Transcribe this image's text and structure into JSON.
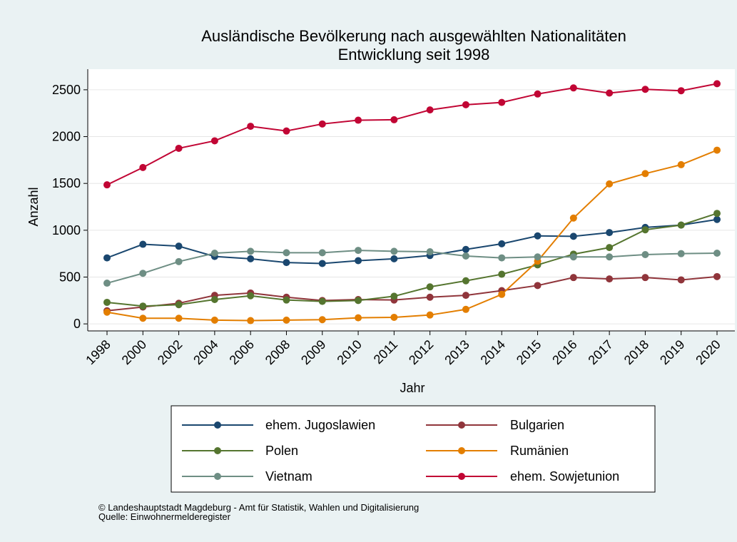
{
  "chart_data": {
    "type": "line",
    "title": "Ausländische Bevölkerung nach ausgewählten Nationalitäten",
    "subtitle": "Entwicklung seit 1998",
    "x_label": "Jahr",
    "y_label": "Anzahl",
    "categories": [
      "1998",
      "2000",
      "2002",
      "2004",
      "2006",
      "2008",
      "2009",
      "2010",
      "2011",
      "2012",
      "2013",
      "2014",
      "2015",
      "2016",
      "2017",
      "2018",
      "2019",
      "2020"
    ],
    "ylim": [
      -75,
      2720
    ],
    "yticks": [
      0,
      500,
      1000,
      1500,
      2000,
      2500
    ],
    "grid": true,
    "series": [
      {
        "name": "ehem. Jugoslawien",
        "color": "#1a476f",
        "values": [
          705,
          850,
          830,
          720,
          695,
          655,
          645,
          675,
          695,
          730,
          795,
          855,
          940,
          935,
          975,
          1030,
          1055,
          1115
        ]
      },
      {
        "name": "Bulgarien",
        "color": "#90353b",
        "values": [
          140,
          180,
          220,
          305,
          330,
          285,
          250,
          260,
          255,
          285,
          305,
          355,
          410,
          495,
          480,
          495,
          470,
          505
        ]
      },
      {
        "name": "Polen",
        "color": "#55752f",
        "values": [
          230,
          190,
          205,
          260,
          300,
          255,
          240,
          250,
          295,
          395,
          460,
          530,
          630,
          745,
          815,
          1005,
          1055,
          1180
        ]
      },
      {
        "name": "Rumänien",
        "color": "#e37e00",
        "values": [
          125,
          60,
          60,
          40,
          35,
          40,
          45,
          65,
          70,
          95,
          155,
          315,
          670,
          1130,
          1495,
          1605,
          1700,
          1855
        ]
      },
      {
        "name": "Vietnam",
        "color": "#6e8e84",
        "values": [
          435,
          540,
          665,
          755,
          775,
          760,
          760,
          785,
          775,
          770,
          725,
          705,
          715,
          715,
          715,
          740,
          750,
          755
        ]
      },
      {
        "name": "ehem. Sowjetunion",
        "color": "#c10534",
        "values": [
          1485,
          1670,
          1875,
          1955,
          2110,
          2060,
          2135,
          2175,
          2180,
          2285,
          2340,
          2365,
          2455,
          2520,
          2465,
          2505,
          2490,
          2565
        ]
      }
    ],
    "notes": [
      "©  Landeshauptstadt Magdeburg - Amt für Statistik, Wahlen und Digitalisierung",
      "Quelle: Einwohnermelderegister"
    ]
  }
}
